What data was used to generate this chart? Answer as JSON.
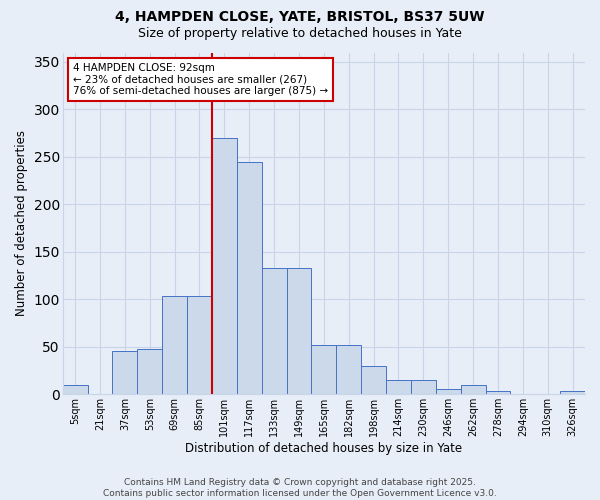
{
  "title1": "4, HAMPDEN CLOSE, YATE, BRISTOL, BS37 5UW",
  "title2": "Size of property relative to detached houses in Yate",
  "xlabel": "Distribution of detached houses by size in Yate",
  "ylabel": "Number of detached properties",
  "bin_labels": [
    "5sqm",
    "21sqm",
    "37sqm",
    "53sqm",
    "69sqm",
    "85sqm",
    "101sqm",
    "117sqm",
    "133sqm",
    "149sqm",
    "165sqm",
    "182sqm",
    "198sqm",
    "214sqm",
    "230sqm",
    "246sqm",
    "262sqm",
    "278sqm",
    "294sqm",
    "310sqm",
    "326sqm"
  ],
  "bar_heights": [
    10,
    0,
    46,
    48,
    104,
    104,
    270,
    245,
    133,
    133,
    52,
    52,
    30,
    15,
    15,
    6,
    10,
    3,
    0,
    0,
    3
  ],
  "bar_color": "#ccd9ea",
  "bar_edge_color": "#4472c4",
  "background_color": "#e8eef8",
  "grid_color": "#c8d4e8",
  "property_label": "4 HAMPDEN CLOSE: 92sqm",
  "pct_smaller": "23% of detached houses are smaller (267)",
  "pct_larger": "76% of semi-detached houses are larger (875)",
  "annotation_box_facecolor": "#ffffff",
  "annotation_box_edge": "#cc0000",
  "vline_color": "#cc0000",
  "vline_x": 5.5,
  "ylim": [
    0,
    360
  ],
  "yticks": [
    0,
    50,
    100,
    150,
    200,
    250,
    300,
    350
  ],
  "footer1": "Contains HM Land Registry data © Crown copyright and database right 2025.",
  "footer2": "Contains public sector information licensed under the Open Government Licence v3.0."
}
